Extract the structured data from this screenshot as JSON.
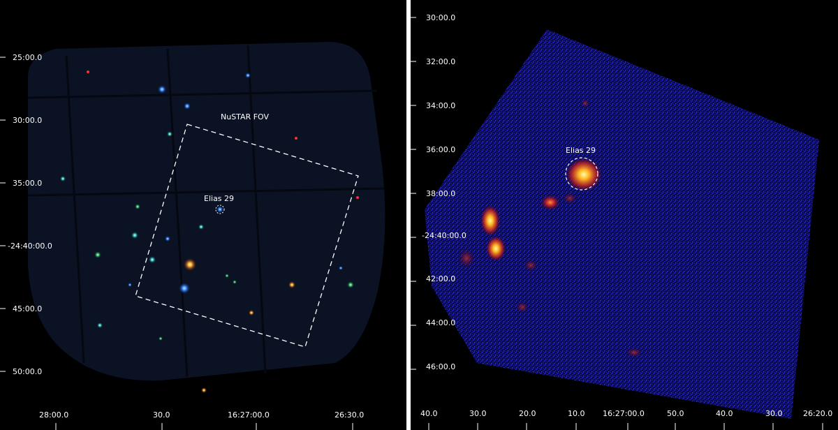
{
  "left_panel": {
    "fov_label": "NuSTAR FOV",
    "source_label": "Elias 29",
    "dec_ticks": [
      "25:00.0",
      "30:00.0",
      "35:00.0",
      "-24:40:00.0",
      "45:00.0",
      "50:00.0"
    ],
    "ra_ticks": [
      "28:00.0",
      "30.0",
      "16:27:00.0",
      "26:30.0"
    ]
  },
  "right_panel": {
    "source_label": "Elias 29",
    "dec_ticks": [
      "30:00.0",
      "32:00.0",
      "34:00.0",
      "36:00.0",
      "38:00.0",
      "-24:40:00.0",
      "42:00.0",
      "44:00.0",
      "46:00.0"
    ],
    "ra_ticks": [
      "40.0",
      "30.0",
      "20.0",
      "10.0",
      "16:27:00.0",
      "50.0",
      "40.0",
      "30.0",
      "26:20.0"
    ]
  },
  "colors": {
    "background": "#000000",
    "divider": "#ffffff",
    "annotation": "#ffffff"
  }
}
